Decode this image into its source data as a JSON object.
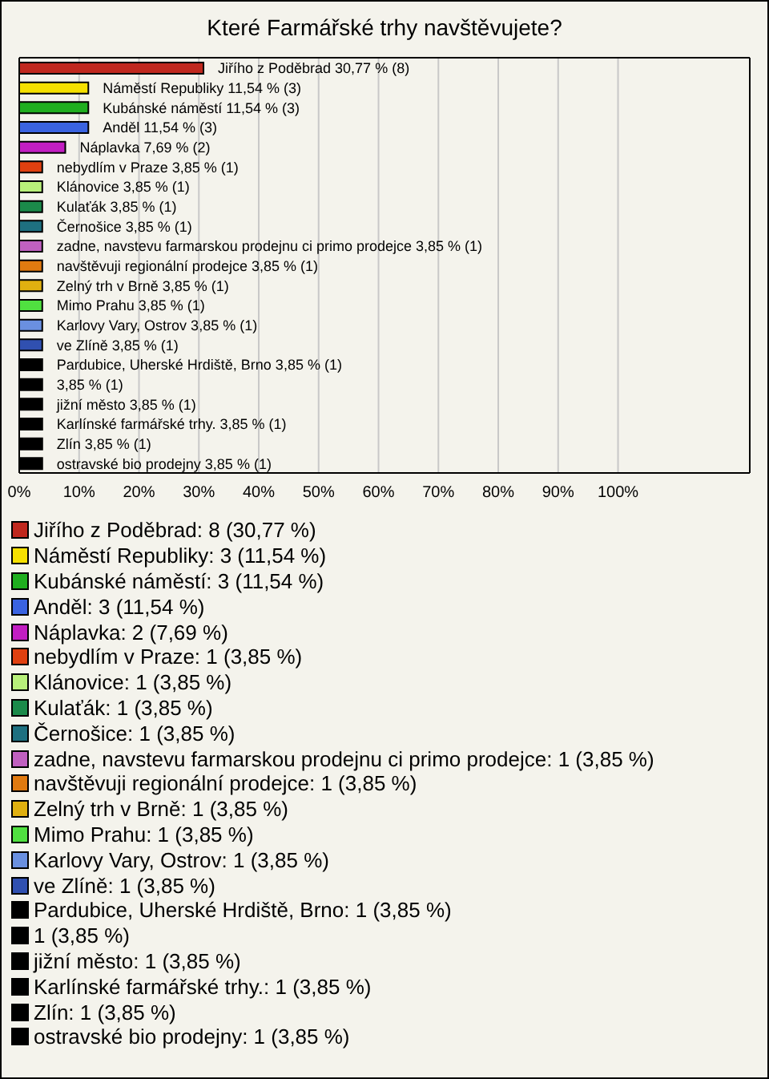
{
  "chart_data": {
    "type": "bar",
    "orientation": "horizontal",
    "title": "Které Farmářské trhy navštěvujete?",
    "categories": [
      "Jiřího z Poděbrad",
      "Náměstí Republiky",
      "Kubánské náměstí",
      "Anděl",
      "Náplavka",
      "nebydlím v Praze",
      "Klánovice",
      "Kulaťák",
      "Černošice",
      "zadne, navstevu farmarskou prodejnu ci primo prodejce",
      "navštěvuji regionální prodejce",
      "Zelný trh v Brně",
      "Mimo Prahu",
      "Karlovy Vary, Ostrov",
      "ve Zlíně",
      "Pardubice, Uherské Hrdiště, Brno",
      null,
      "jižní město",
      "Karlínské farmářské trhy.",
      "Zlín",
      "ostravské bio prodejny"
    ],
    "values": [
      30.77,
      11.54,
      11.54,
      11.54,
      7.69,
      3.85,
      3.85,
      3.85,
      3.85,
      3.85,
      3.85,
      3.85,
      3.85,
      3.85,
      3.85,
      3.85,
      3.85,
      3.85,
      3.85,
      3.85,
      3.85
    ],
    "value_labels": [
      "30,77 % (8)",
      "11,54 % (3)",
      "11,54 % (3)",
      "11,54 % (3)",
      "7,69 % (2)",
      "3,85 % (1)",
      "3,85 % (1)",
      "3,85 % (1)",
      "3,85 % (1)",
      "3,85 % (1)",
      "3,85 % (1)",
      "3,85 % (1)",
      "3,85 % (1)",
      "3,85 % (1)",
      "3,85 % (1)",
      "3,85 % (1)",
      "3,85 % (1)",
      "3,85 % (1)",
      "3,85 % (1)",
      "3,85 % (1)",
      "3,85 % (1)"
    ],
    "colors": [
      "#c0281e",
      "#f5e000",
      "#1fae1f",
      "#3a63e0",
      "#c21ec2",
      "#e04010",
      "#b8f07a",
      "#1b8a4a",
      "#1e7080",
      "#c060c0",
      "#e07a10",
      "#e0b010",
      "#50e040",
      "#6a90e0",
      "#3050b0",
      "#000000",
      "#000000",
      "#000000",
      "#000000",
      "#000000",
      "#000000"
    ],
    "annotations": [
      "Jiřího z Poděbrad: 8 (30,77 %)",
      "Náměstí Republiky: 3 (11,54 %)",
      "Kubánské náměstí: 3 (11,54 %)",
      "Anděl: 3 (11,54 %)",
      "Náplavka: 2 (7,69 %)",
      "nebydlím v Praze: 1 (3,85 %)",
      "Klánovice: 1 (3,85 %)",
      "Kulaťák: 1 (3,85 %)",
      "Černošice: 1 (3,85 %)",
      "zadne, navstevu farmarskou prodejnu ci primo prodejce: 1 (3,85 %)",
      "navštěvuji regionální prodejce: 1 (3,85 %)",
      "Zelný trh v Brně: 1 (3,85 %)",
      "Mimo Prahu: 1 (3,85 %)",
      "Karlovy Vary, Ostrov: 1 (3,85 %)",
      "ve Zlíně: 1 (3,85 %)",
      "Pardubice, Uherské Hrdiště, Brno: 1 (3,85 %)",
      "1 (3,85 %)",
      "jižní město: 1 (3,85 %)",
      "Karlínské farmářské trhy.: 1 (3,85 %)",
      "Zlín: 1 (3,85 %)",
      "ostravské bio prodejny: 1 (3,85 %)"
    ],
    "xlim": [
      0,
      122
    ],
    "xticks": [
      {
        "value": 0,
        "label": "0%"
      },
      {
        "value": 10,
        "label": "10%"
      },
      {
        "value": 20,
        "label": "20%"
      },
      {
        "value": 30,
        "label": "30%"
      },
      {
        "value": 40,
        "label": "40%"
      },
      {
        "value": 50,
        "label": "50%"
      },
      {
        "value": 60,
        "label": "60%"
      },
      {
        "value": 70,
        "label": "70%"
      },
      {
        "value": 80,
        "label": "80%"
      },
      {
        "value": 90,
        "label": "90%"
      },
      {
        "value": 100,
        "label": "100%"
      }
    ],
    "grid": "x"
  }
}
